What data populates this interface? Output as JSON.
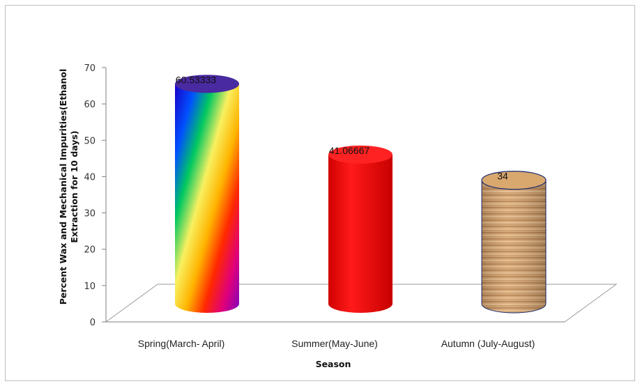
{
  "chart_data": {
    "type": "bar",
    "style": "3d-cylinder",
    "title": "",
    "xlabel": "Season",
    "ylabel_lines": [
      "Percent Wax and Mechanical Impurities(Ethanol",
      "Extraction for 10 days)"
    ],
    "categories": [
      "Spring(March- April)",
      "Summer(May-June)",
      "Autumn (July-August)"
    ],
    "values": [
      60.53333,
      41.06667,
      34
    ],
    "data_labels": [
      "60.53333",
      "41.06667",
      "34"
    ],
    "ylim": [
      0,
      70
    ],
    "yticks": [
      0,
      10,
      20,
      30,
      40,
      50,
      60,
      70
    ],
    "grid": false,
    "legend": "none",
    "bar_fills": [
      "rainbow",
      "#ff0000",
      "wood"
    ]
  }
}
